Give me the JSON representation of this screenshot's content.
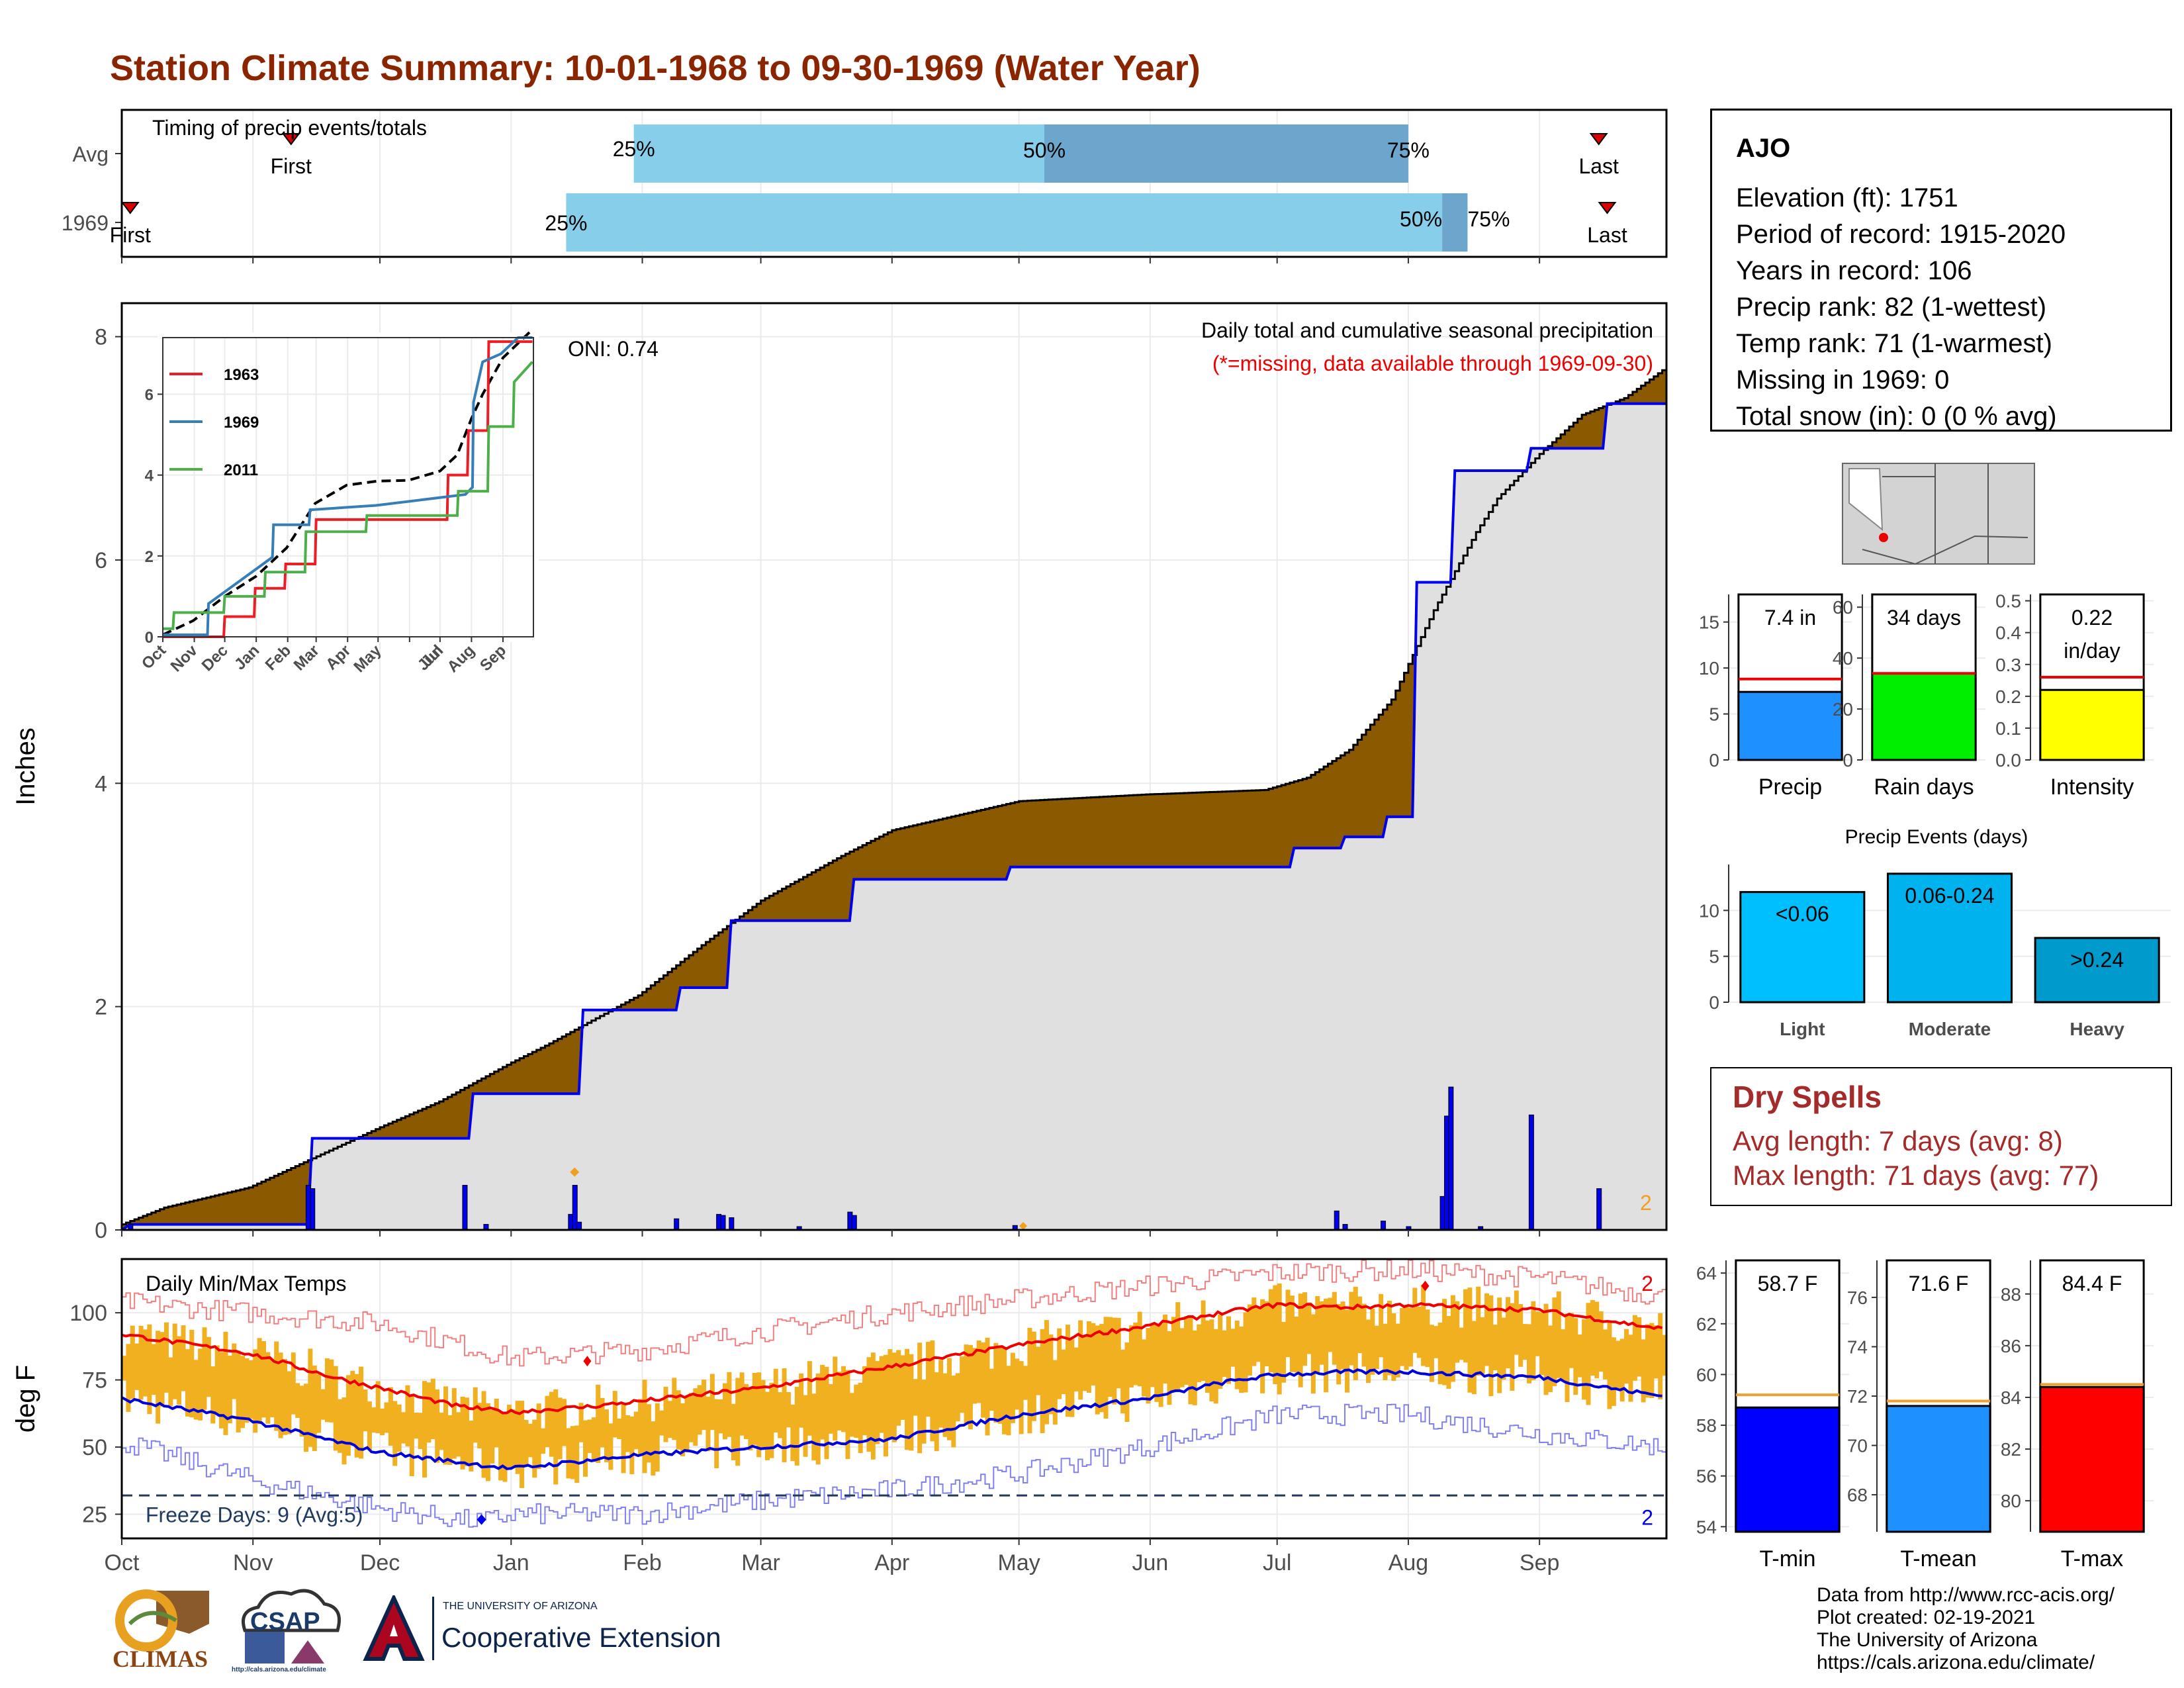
{
  "title": "Station Climate Summary: 10-01-1968 to 09-30-1969 (Water Year)",
  "timing": {
    "label": "Timing of precip events/totals",
    "rows": [
      "Avg",
      "1969"
    ],
    "first_label": "First",
    "last_label": "Last",
    "pct_labels": [
      "25%",
      "50%",
      "75%"
    ]
  },
  "months": [
    "Oct",
    "Nov",
    "Dec",
    "Jan",
    "Feb",
    "Mar",
    "Apr",
    "May",
    "Jun",
    "Jul",
    "Aug",
    "Sep"
  ],
  "main": {
    "ylabel": "Inches",
    "note1": "Daily total and cumulative seasonal precipitation",
    "note2": "(*=missing, data available through 1969-09-30)",
    "oni": "ONI: 0.74",
    "count_label": "2"
  },
  "inset": {
    "legend": [
      "1963",
      "1969",
      "2011"
    ],
    "xticks": [
      "Oct",
      "Nov",
      "Dec",
      "Jan",
      "Feb",
      "Mar",
      "Apr",
      "May",
      "Jun",
      "Jul",
      "Aug",
      "Sep"
    ],
    "yticks": [
      "0",
      "2",
      "4",
      "6"
    ]
  },
  "temps": {
    "label": "Daily Min/Max Temps",
    "ylabel": "deg F",
    "freeze": "Freeze Days: 9 (Avg:5)",
    "max_count": "2",
    "min_count": "2"
  },
  "station": {
    "name": "AJO",
    "lines": [
      "Elevation (ft): 1751",
      "Period of record: 1915-2020",
      "Years in record: 106",
      "Precip rank: 82 (1-wettest)",
      "Temp rank: 71 (1-warmest)",
      "Missing in 1969: 0",
      "Total snow (in): 0 (0 % avg)"
    ]
  },
  "dry_spells": {
    "title": "Dry Spells",
    "avg": "Avg length: 7 days (avg: 8)",
    "max": "Max length: 71 days (avg: 77)"
  },
  "events": {
    "title": "Precip Events (days)",
    "categories": [
      "Light",
      "Moderate",
      "Heavy"
    ],
    "bar_labels": [
      "<0.06",
      "0.06-0.24",
      ">0.24"
    ],
    "values": [
      12,
      14,
      7
    ]
  },
  "footer": [
    "Data from http://www.rcc-acis.org/",
    "Plot created: 02-19-2021",
    "The University of Arizona",
    "https://cals.arizona.edu/climate/"
  ],
  "logos": {
    "climas": "CLIMAS",
    "csap": "CSAP",
    "csap_url": "http://cals.arizona.edu/climate",
    "ua_small": "THE UNIVERSITY OF ARIZONA",
    "ua_big": "Cooperative Extension"
  },
  "colors": {
    "title": "#8b2500",
    "precip_fill": "#8b5a00",
    "obs_fill": "#e0e0e0",
    "obs_line": "#0000ee",
    "temp_bar": "#f0b020",
    "tmax_avg": "#ee0000",
    "tmin_avg": "#0000dd"
  },
  "chart_data": [
    {
      "type": "bar",
      "name": "timing",
      "categories": [
        "Avg",
        "1969"
      ],
      "series": [
        {
          "name": "Avg",
          "first": "1968-11-10",
          "p25": "1969-01-30",
          "p50": "1969-05-07",
          "p75": "1969-08-01",
          "last": "1969-09-15"
        },
        {
          "name": "1969",
          "first": "1968-10-03",
          "p25": "1969-01-14",
          "p50": "1969-08-09",
          "p75": "1969-08-15",
          "last": "1969-09-17"
        }
      ]
    },
    {
      "type": "area",
      "name": "cumulative_precip",
      "x_unit": "day of water year (Oct 1 = 0)",
      "ylim": [
        0,
        8.3
      ],
      "yticks": [
        0,
        2,
        4,
        6,
        8
      ],
      "series": [
        {
          "name": "avg_cumulative",
          "x": [
            0,
            10,
            30,
            61,
            75,
            92,
            100,
            122,
            137,
            151,
            170,
            182,
            212,
            242,
            270,
            280,
            290,
            300,
            310,
            320,
            325,
            335,
            345,
            355,
            364
          ],
          "y": [
            0.05,
            0.2,
            0.38,
            0.92,
            1.15,
            1.5,
            1.65,
            2.1,
            2.55,
            2.95,
            3.35,
            3.58,
            3.84,
            3.9,
            3.94,
            4.05,
            4.3,
            4.75,
            5.55,
            6.25,
            6.55,
            6.95,
            7.3,
            7.45,
            7.7
          ]
        }
      ]
    },
    {
      "type": "line",
      "name": "observed_cumulative_1969",
      "x": [
        0,
        2,
        44,
        45,
        82,
        83,
        108,
        109,
        131,
        132,
        143,
        144,
        172,
        173,
        209,
        210,
        276,
        277,
        288,
        289,
        298,
        299,
        305,
        306,
        314,
        315,
        332,
        333,
        350,
        351,
        364
      ],
      "y": [
        0.0,
        0.05,
        0.05,
        0.82,
        0.82,
        1.22,
        1.22,
        1.97,
        1.97,
        2.17,
        2.17,
        2.77,
        2.77,
        3.14,
        3.14,
        3.25,
        3.25,
        3.42,
        3.42,
        3.52,
        3.52,
        3.7,
        3.7,
        5.8,
        5.8,
        6.8,
        6.8,
        7.0,
        7.0,
        7.4,
        7.4
      ]
    },
    {
      "type": "bar",
      "name": "daily_precip_1969",
      "x": [
        2,
        44,
        45,
        81,
        86,
        106,
        107,
        108,
        131,
        141,
        142,
        144,
        160,
        172,
        173,
        211,
        287,
        289,
        298,
        304,
        312,
        313,
        314,
        321,
        333,
        349
      ],
      "values": [
        0.05,
        0.4,
        0.37,
        0.4,
        0.05,
        0.14,
        0.4,
        0.07,
        0.1,
        0.14,
        0.13,
        0.11,
        0.03,
        0.16,
        0.13,
        0.04,
        0.17,
        0.05,
        0.08,
        0.03,
        0.3,
        1.02,
        1.28,
        0.03,
        1.03,
        0.37
      ]
    },
    {
      "type": "line",
      "name": "daily_temps",
      "ylim": [
        16,
        120
      ],
      "yticks": [
        25,
        50,
        75,
        100
      ],
      "freeze_line": 32,
      "series": [
        {
          "name": "tmax_avg",
          "x": [
            0,
            30,
            50,
            61,
            80,
            92,
            110,
            122,
            151,
            182,
            212,
            242,
            260,
            273,
            290,
            304,
            320,
            335,
            364
          ],
          "y": [
            92,
            85,
            76,
            72,
            65,
            63,
            65,
            67,
            72,
            80,
            88,
            95,
            100,
            103,
            102,
            103,
            102,
            101,
            94
          ]
        },
        {
          "name": "tmin_avg",
          "x": [
            0,
            30,
            61,
            92,
            110,
            122,
            151,
            182,
            212,
            242,
            260,
            273,
            290,
            304,
            320,
            335,
            364
          ],
          "y": [
            68,
            60,
            48,
            42,
            45,
            47,
            50,
            53,
            62,
            68,
            74,
            77,
            78,
            78,
            77,
            76,
            69
          ]
        },
        {
          "name": "record_high",
          "x": [
            0,
            61,
            92,
            122,
            151,
            182,
            212,
            242,
            273,
            304,
            335,
            364
          ],
          "y": [
            104,
            96,
            83,
            86,
            93,
            100,
            105,
            110,
            115,
            116,
            113,
            106
          ]
        },
        {
          "name": "record_low",
          "x": [
            0,
            30,
            61,
            85,
            92,
            122,
            151,
            182,
            212,
            242,
            273,
            304,
            335,
            364
          ],
          "y": [
            52,
            38,
            27,
            22,
            25,
            25,
            30,
            34,
            40,
            50,
            62,
            62,
            55,
            50
          ]
        }
      ]
    },
    {
      "type": "bar",
      "name": "precip_total",
      "categories": [
        "Precip"
      ],
      "values": [
        7.4
      ],
      "avg": 8.8,
      "ylim": [
        0,
        18
      ],
      "yticks": [
        0,
        5,
        10,
        15
      ],
      "label": "7.4 in"
    },
    {
      "type": "bar",
      "name": "rain_days",
      "categories": [
        "Rain days"
      ],
      "values": [
        34
      ],
      "avg": 34,
      "ylim": [
        0,
        65
      ],
      "yticks": [
        0,
        20,
        40,
        60
      ],
      "label": "34 days"
    },
    {
      "type": "bar",
      "name": "intensity",
      "categories": [
        "Intensity"
      ],
      "values": [
        0.22
      ],
      "avg": 0.26,
      "ylim": [
        0,
        0.52
      ],
      "yticks": [
        0.0,
        0.1,
        0.2,
        0.3,
        0.4,
        0.5
      ],
      "label": [
        "0.22",
        "in/day"
      ]
    },
    {
      "type": "bar",
      "name": "precip_events",
      "categories": [
        "Light",
        "Moderate",
        "Heavy"
      ],
      "values": [
        12,
        14,
        7
      ],
      "ylim": [
        0,
        15
      ],
      "yticks": [
        0,
        5,
        10
      ]
    },
    {
      "type": "bar",
      "name": "t_min",
      "categories": [
        "T-min"
      ],
      "values": [
        58.7
      ],
      "avg": 59.2,
      "ylim": [
        53.8,
        64.5
      ],
      "yticks": [
        54,
        56,
        58,
        60,
        62,
        64
      ],
      "label": "58.7 F"
    },
    {
      "type": "bar",
      "name": "t_mean",
      "categories": [
        "T-mean"
      ],
      "values": [
        71.6
      ],
      "avg": 71.8,
      "ylim": [
        66.5,
        77.5
      ],
      "yticks": [
        68,
        70,
        72,
        74,
        76
      ],
      "label": "71.6 F"
    },
    {
      "type": "bar",
      "name": "t_max",
      "categories": [
        "T-max"
      ],
      "values": [
        84.4
      ],
      "avg": 84.5,
      "ylim": [
        78.8,
        89.3
      ],
      "yticks": [
        80,
        82,
        84,
        86,
        88
      ],
      "label": "84.4 F"
    },
    {
      "type": "line",
      "name": "inset_cumulative",
      "x_unit": "day of water year",
      "ylim": [
        0,
        7.4
      ],
      "series": [
        {
          "name": "average",
          "x": [
            0,
            30,
            61,
            92,
            122,
            150,
            181,
            211,
            242,
            273,
            290,
            304,
            315,
            335,
            364
          ],
          "y": [
            0.05,
            0.4,
            1.0,
            1.5,
            2.2,
            3.3,
            3.75,
            3.85,
            3.87,
            4.1,
            4.5,
            5.4,
            6.0,
            6.9,
            7.6
          ]
        },
        {
          "name": "1963",
          "x": [
            0,
            60,
            61,
            90,
            91,
            120,
            121,
            150,
            151,
            280,
            281,
            300,
            301,
            320,
            321,
            364
          ],
          "y": [
            0,
            0,
            0.5,
            0.5,
            1.2,
            1.2,
            1.8,
            1.8,
            2.9,
            2.9,
            4.0,
            4.0,
            5.1,
            5.1,
            7.3,
            7.3
          ]
        },
        {
          "name": "1969",
          "x": [
            0,
            44,
            45,
            108,
            109,
            144,
            145,
            210,
            298,
            305,
            306,
            315,
            333,
            350,
            351,
            364
          ],
          "y": [
            0.05,
            0.05,
            0.82,
            1.97,
            2.77,
            2.77,
            3.14,
            3.25,
            3.52,
            3.7,
            5.8,
            6.8,
            7.0,
            7.4,
            7.4,
            7.4
          ]
        },
        {
          "name": "2011",
          "x": [
            0,
            10,
            11,
            60,
            61,
            100,
            101,
            140,
            141,
            200,
            201,
            290,
            291,
            320,
            321,
            345,
            346,
            364
          ],
          "y": [
            0.2,
            0.2,
            0.6,
            0.6,
            1.0,
            1.0,
            1.6,
            1.6,
            2.6,
            2.6,
            3.0,
            3.0,
            3.6,
            3.6,
            5.2,
            5.2,
            6.3,
            6.8
          ]
        }
      ]
    }
  ]
}
